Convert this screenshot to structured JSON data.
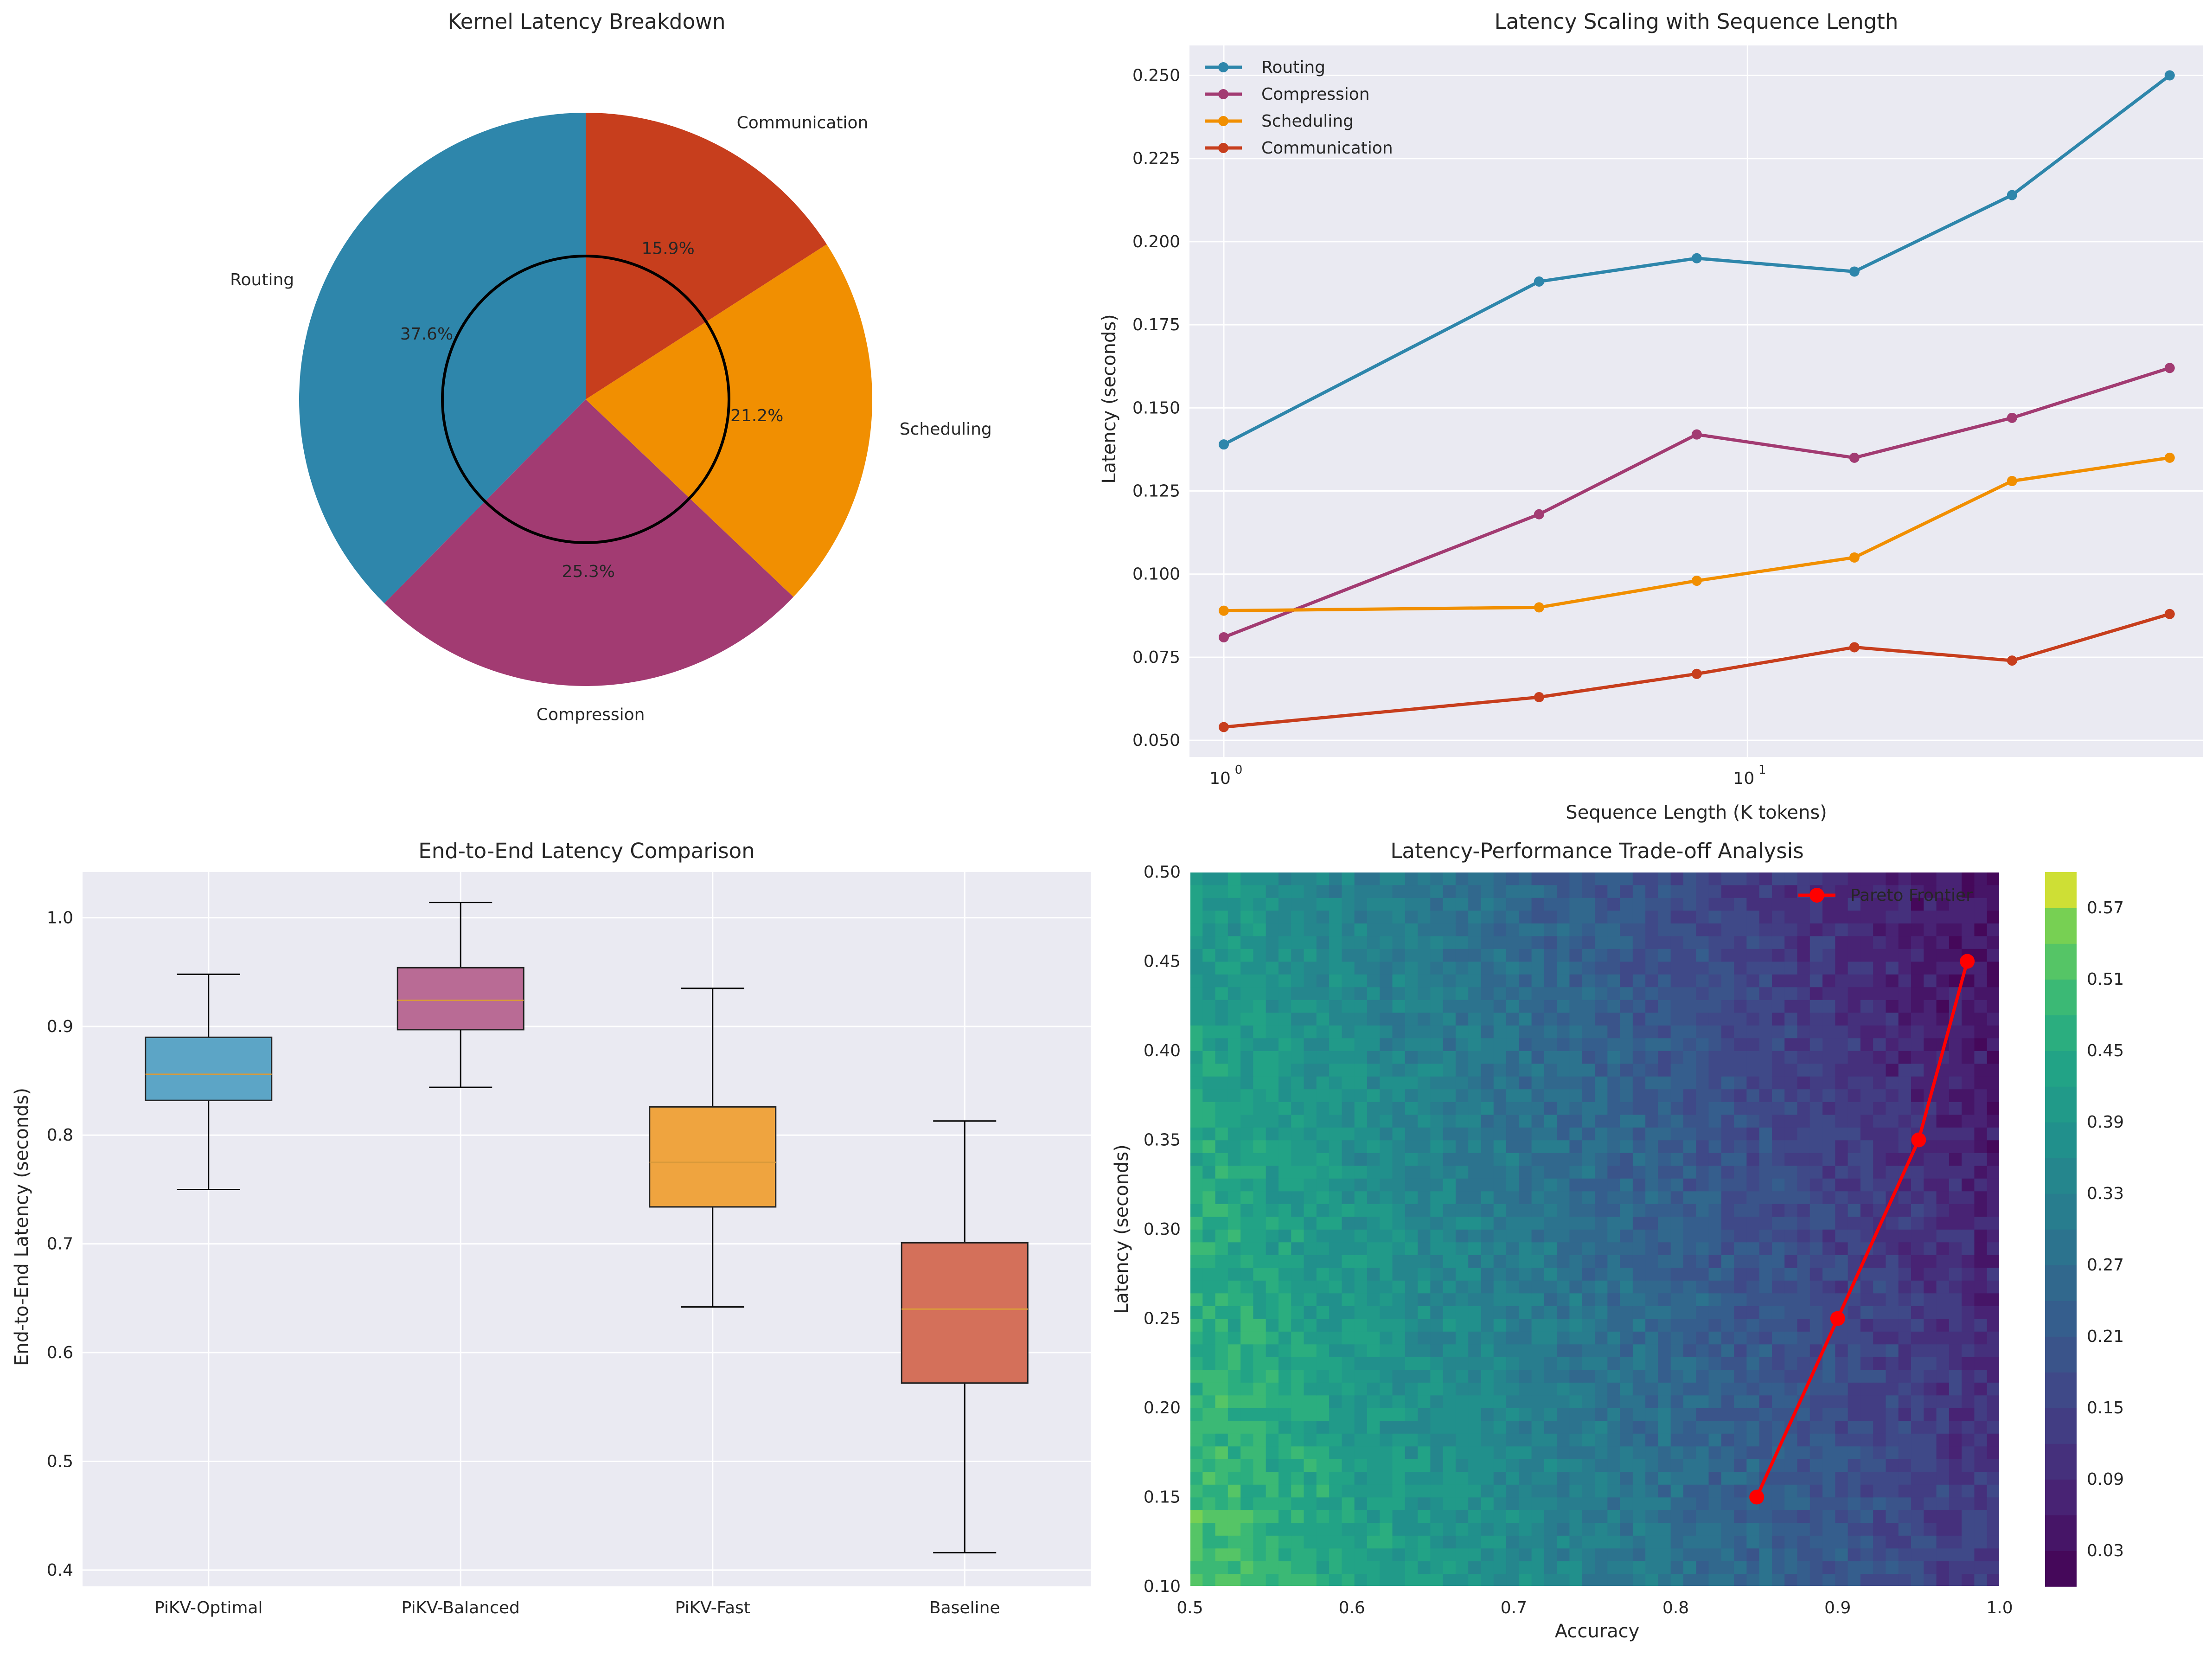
{
  "chart_data": [
    {
      "type": "pie",
      "title": "Kernel Latency Breakdown",
      "labels": [
        "Routing",
        "Compression",
        "Scheduling",
        "Communication"
      ],
      "values": [
        37.6,
        25.3,
        21.2,
        15.9
      ],
      "pct_labels": [
        "37.6%",
        "25.3%",
        "21.2%",
        "15.9%"
      ],
      "colors": [
        "#2e86ab",
        "#a23b72",
        "#f18f01",
        "#c73e1d"
      ],
      "start_angle_deg": 90,
      "direction": "counterclockwise",
      "center_circle": true
    },
    {
      "type": "line",
      "title": "Latency Scaling with Sequence Length",
      "xlabel": "Sequence Length (K tokens)",
      "ylabel": "Latency (seconds)",
      "xscale": "log",
      "x": [
        1,
        4,
        8,
        16,
        32,
        64
      ],
      "xlim": [
        0.86,
        74
      ],
      "ylim": [
        0.045,
        0.259
      ],
      "yticks": [
        0.05,
        0.075,
        0.1,
        0.125,
        0.15,
        0.175,
        0.2,
        0.225,
        0.25
      ],
      "ytick_labels": [
        "0.050",
        "0.075",
        "0.100",
        "0.125",
        "0.150",
        "0.175",
        "0.200",
        "0.225",
        "0.250"
      ],
      "xtick_labels": [
        {
          "base": "10",
          "exp": "0",
          "value": 1
        },
        {
          "base": "10",
          "exp": "1",
          "value": 10
        }
      ],
      "legend": "top-left",
      "series": [
        {
          "name": "Routing",
          "color": "#2e86ab",
          "values": [
            0.139,
            0.188,
            0.195,
            0.191,
            0.214,
            0.25
          ]
        },
        {
          "name": "Compression",
          "color": "#a23b72",
          "values": [
            0.081,
            0.118,
            0.142,
            0.135,
            0.147,
            0.162
          ]
        },
        {
          "name": "Scheduling",
          "color": "#f18f01",
          "values": [
            0.089,
            0.09,
            0.098,
            0.105,
            0.128,
            0.135
          ]
        },
        {
          "name": "Communication",
          "color": "#c73e1d",
          "values": [
            0.054,
            0.063,
            0.07,
            0.078,
            0.074,
            0.088
          ]
        }
      ]
    },
    {
      "type": "box",
      "title": "End-to-End Latency Comparison",
      "ylabel": "End-to-End Latency (seconds)",
      "categories": [
        "PiKV-Optimal",
        "PiKV-Balanced",
        "PiKV-Fast",
        "Baseline"
      ],
      "ylim": [
        0.385,
        1.042
      ],
      "yticks": [
        0.4,
        0.5,
        0.6,
        0.7,
        0.8,
        0.9,
        1.0
      ],
      "ytick_labels": [
        "0.4",
        "0.5",
        "0.6",
        "0.7",
        "0.8",
        "0.9",
        "1.0"
      ],
      "boxes": [
        {
          "name": "PiKV-Optimal",
          "color": "#5ca5c6",
          "whisker_low": 0.75,
          "q1": 0.832,
          "median": 0.856,
          "q3": 0.89,
          "whisker_high": 0.948
        },
        {
          "name": "PiKV-Balanced",
          "color": "#b96b95",
          "whisker_low": 0.844,
          "q1": 0.897,
          "median": 0.924,
          "q3": 0.954,
          "whisker_high": 1.014
        },
        {
          "name": "PiKV-Fast",
          "color": "#efa43f",
          "whisker_low": 0.642,
          "q1": 0.734,
          "median": 0.775,
          "q3": 0.826,
          "whisker_high": 0.935
        },
        {
          "name": "Baseline",
          "color": "#d4705a",
          "whisker_low": 0.416,
          "q1": 0.572,
          "median": 0.64,
          "q3": 0.701,
          "whisker_high": 0.813
        }
      ]
    },
    {
      "type": "heatmap",
      "subtype": "contour",
      "title": "Latency-Performance Trade-off Analysis",
      "xlabel": "Accuracy",
      "ylabel": "Latency (seconds)",
      "xlim": [
        0.5,
        1.0
      ],
      "ylim": [
        0.1,
        0.5
      ],
      "xticks": [
        0.5,
        0.6,
        0.7,
        0.8,
        0.9,
        1.0
      ],
      "xtick_labels": [
        "0.5",
        "0.6",
        "0.7",
        "0.8",
        "0.9",
        "1.0"
      ],
      "yticks": [
        0.1,
        0.15,
        0.2,
        0.25,
        0.3,
        0.35,
        0.4,
        0.45,
        0.5
      ],
      "ytick_labels": [
        "0.10",
        "0.15",
        "0.20",
        "0.25",
        "0.30",
        "0.35",
        "0.40",
        "0.45",
        "0.50"
      ],
      "colormap": "viridis",
      "color_range": [
        0.0,
        0.6
      ],
      "colorbar_ticks": [
        0.03,
        0.09,
        0.15,
        0.21,
        0.27,
        0.33,
        0.39,
        0.45,
        0.51,
        0.57
      ],
      "colorbar_tick_labels": [
        "0.03",
        "0.09",
        "0.15",
        "0.21",
        "0.27",
        "0.33",
        "0.39",
        "0.45",
        "0.51",
        "0.57"
      ],
      "pareto": {
        "name": "Pareto Frontier",
        "color": "#ff0000",
        "x": [
          0.85,
          0.9,
          0.95,
          0.98
        ],
        "y": [
          0.15,
          0.25,
          0.35,
          0.45
        ]
      },
      "legend": "top-right"
    }
  ]
}
